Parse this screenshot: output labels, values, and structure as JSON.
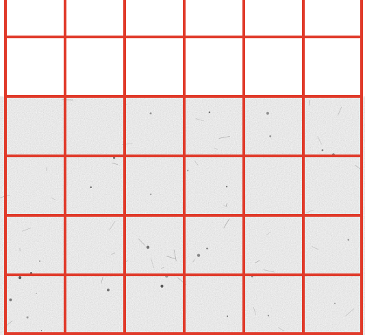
{
  "grid": {
    "columns": 6,
    "rows": 6,
    "filled_rows": 4,
    "empty_rows": 2,
    "line_color": "#e03a2a",
    "empty_color": "#ffffff",
    "texture_base_color": "#d6d6d6",
    "texture_speck_color": "#333333"
  }
}
